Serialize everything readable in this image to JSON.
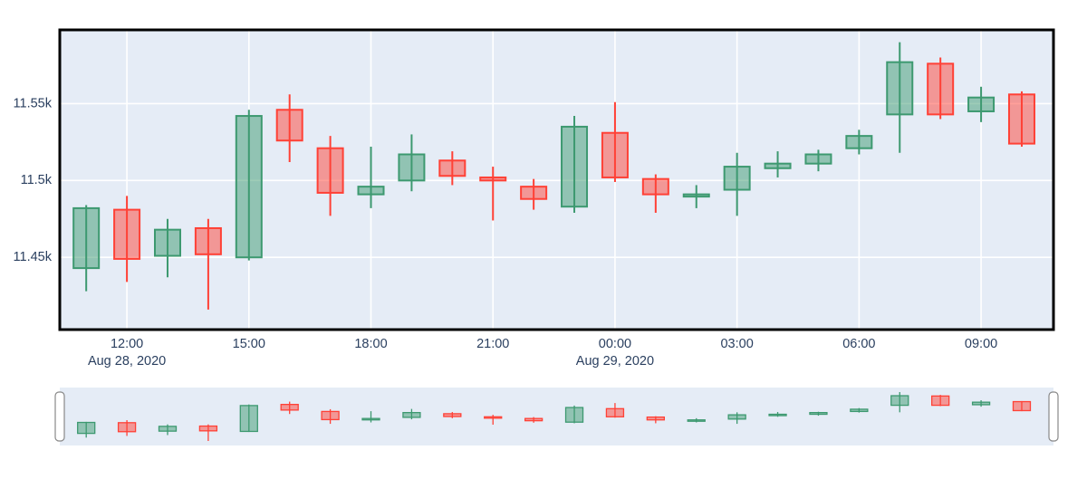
{
  "chart_data": {
    "type": "candlestick",
    "x": [
      "2020-08-28 11:00",
      "2020-08-28 12:00",
      "2020-08-28 13:00",
      "2020-08-28 14:00",
      "2020-08-28 15:00",
      "2020-08-28 16:00",
      "2020-08-28 17:00",
      "2020-08-28 18:00",
      "2020-08-28 19:00",
      "2020-08-28 20:00",
      "2020-08-28 21:00",
      "2020-08-28 22:00",
      "2020-08-28 23:00",
      "2020-08-29 00:00",
      "2020-08-29 01:00",
      "2020-08-29 02:00",
      "2020-08-29 03:00",
      "2020-08-29 04:00",
      "2020-08-29 05:00",
      "2020-08-29 06:00",
      "2020-08-29 07:00",
      "2020-08-29 08:00",
      "2020-08-29 09:00",
      "2020-08-29 10:00"
    ],
    "open": [
      11443,
      11481,
      11451,
      11469,
      11450,
      11546,
      11521,
      11491,
      11500,
      11513,
      11502,
      11496,
      11483,
      11531,
      11501,
      11490,
      11494,
      11508,
      11511,
      11521,
      11543,
      11576,
      11545,
      11556
    ],
    "high": [
      11484,
      11490,
      11475,
      11475,
      11546,
      11556,
      11529,
      11522,
      11530,
      11519,
      11509,
      11501,
      11542,
      11551,
      11504,
      11497,
      11518,
      11519,
      11520,
      11533,
      11590,
      11580,
      11561,
      11558
    ],
    "low": [
      11428,
      11434,
      11437,
      11416,
      11448,
      11512,
      11477,
      11482,
      11493,
      11497,
      11474,
      11481,
      11479,
      11499,
      11479,
      11482,
      11477,
      11502,
      11506,
      11517,
      11518,
      11540,
      11538,
      11522
    ],
    "close": [
      11482,
      11449,
      11468,
      11452,
      11542,
      11526,
      11492,
      11496,
      11517,
      11503,
      11500,
      11488,
      11535,
      11502,
      11491,
      11491,
      11509,
      11511,
      11517,
      11529,
      11577,
      11543,
      11554,
      11524
    ],
    "yaxis": {
      "tickvals": [
        11450,
        11500,
        11550
      ],
      "ticklabels": [
        "11.45k",
        "11.5k",
        "11.55k"
      ],
      "range": [
        11403,
        11598
      ]
    },
    "xaxis": {
      "tick_indices": [
        1,
        4,
        7,
        10,
        13,
        16,
        19,
        22
      ],
      "ticklabels": [
        "12:00",
        "15:00",
        "18:00",
        "21:00",
        "00:00",
        "03:00",
        "06:00",
        "09:00"
      ],
      "date_labels": [
        {
          "index": 1,
          "label": "Aug 28, 2020"
        },
        {
          "index": 13,
          "label": "Aug 29, 2020"
        }
      ],
      "range_indices": [
        -0.65,
        23.78
      ]
    },
    "rangeslider": {
      "visible": true
    },
    "legend": {
      "visible": false
    },
    "grid": "on",
    "title": "",
    "xlabel": "",
    "ylabel": "",
    "colors": {
      "plot_bg": "#e5ecf6",
      "grid": "#ffffff",
      "frame": "#000000",
      "tick_text": "#2a3f5f",
      "increasing_line": "#3d9970",
      "increasing_fill": "rgba(61,153,112,0.5)",
      "decreasing_line": "#ff4136",
      "decreasing_fill": "rgba(255,65,54,0.5)",
      "handle_fill": "#ffffff",
      "handle_stroke": "#888888"
    }
  }
}
